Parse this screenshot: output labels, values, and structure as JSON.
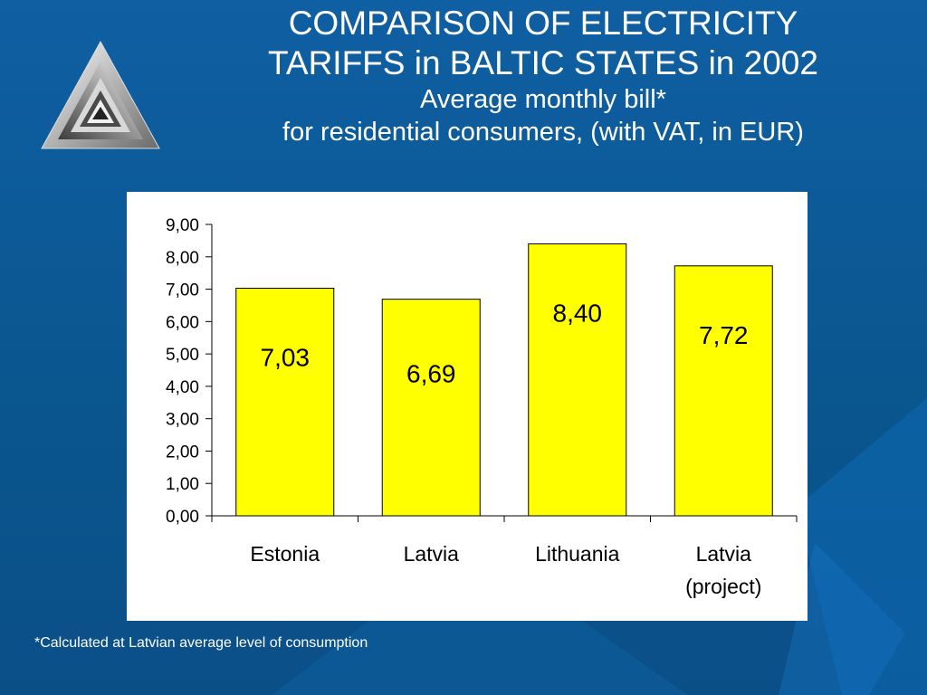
{
  "slide": {
    "title_line1": "COMPARISON OF ELECTRICITY",
    "title_line2": "TARIFFS in BALTIC STATES in 2002",
    "subtitle_line1": "Average monthly bill*",
    "subtitle_line2": "for residential consumers,  (with VAT, in EUR)",
    "footnote": "*Calculated at Latvian average level of consumption"
  },
  "colors": {
    "background": "#0b5a98",
    "bar_fill": "#ffff00",
    "bar_stroke": "#000000",
    "panel": "#ffffff"
  },
  "logo_icon": "triangle-spiral-logo-icon",
  "chart_data": {
    "type": "bar",
    "title": "",
    "xlabel": "",
    "ylabel": "",
    "categories": [
      [
        "Estonia"
      ],
      [
        "Latvia"
      ],
      [
        "Lithuania"
      ],
      [
        "Latvia",
        "(project)"
      ]
    ],
    "values": [
      7.03,
      6.69,
      8.4,
      7.72
    ],
    "data_labels": [
      "7,03",
      "6,69",
      "8,40",
      "7,72"
    ],
    "ylim": [
      0,
      9
    ],
    "yticks": [
      "0,00",
      "1,00",
      "2,00",
      "3,00",
      "4,00",
      "5,00",
      "6,00",
      "7,00",
      "8,00",
      "9,00"
    ],
    "grid": false,
    "legend": "none"
  }
}
